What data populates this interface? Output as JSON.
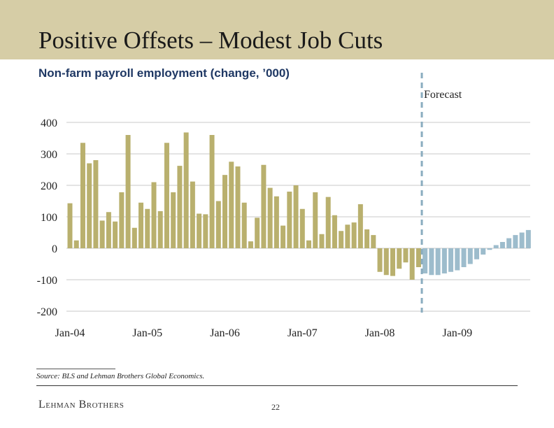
{
  "slide": {
    "title": "Positive Offsets – Modest Job Cuts",
    "subtitle": "Non-farm payroll employment (change, ’000)",
    "source": "Source: BLS and Lehman Brothers Global Economics.",
    "logo": "Lehman Brothers",
    "page_number": "22"
  },
  "colors": {
    "header_band": "#d6cda6",
    "actual_bar": "#b9b06e",
    "forecast_bar": "#9dbccc",
    "forecast_divider": "#8aacbf",
    "gridline": "#c8c8c8"
  },
  "chart_data": {
    "type": "bar",
    "title": "",
    "xlabel": "",
    "ylabel": "",
    "ylim": [
      -200,
      400
    ],
    "yticks": [
      "400",
      "300",
      "200",
      "100",
      "0",
      "-100",
      "-200"
    ],
    "x_tick_labels": [
      "Jan-04",
      "Jan-05",
      "Jan-06",
      "Jan-07",
      "Jan-08",
      "Jan-09"
    ],
    "grid": "horizontal",
    "forecast_label": "Forecast",
    "x_start": "Jan-04",
    "series": [
      {
        "role": "actual",
        "values": [
          143,
          25,
          335,
          270,
          280,
          88,
          115,
          85,
          178,
          360,
          65,
          145,
          125,
          210,
          118,
          335,
          178,
          262,
          368,
          212,
          110,
          108,
          360,
          150,
          233,
          275,
          260,
          145,
          22,
          97,
          265,
          192,
          165,
          72,
          180,
          200,
          125,
          25,
          178,
          45,
          163,
          105,
          55,
          75,
          82,
          140,
          60,
          42,
          -75,
          -85,
          -88,
          -65,
          -45,
          -100,
          -60
        ]
      },
      {
        "role": "forecast",
        "values": [
          -80,
          -85,
          -85,
          -80,
          -75,
          -70,
          -60,
          -50,
          -35,
          -20,
          -5,
          10,
          20,
          32,
          42,
          50,
          58
        ]
      }
    ]
  }
}
